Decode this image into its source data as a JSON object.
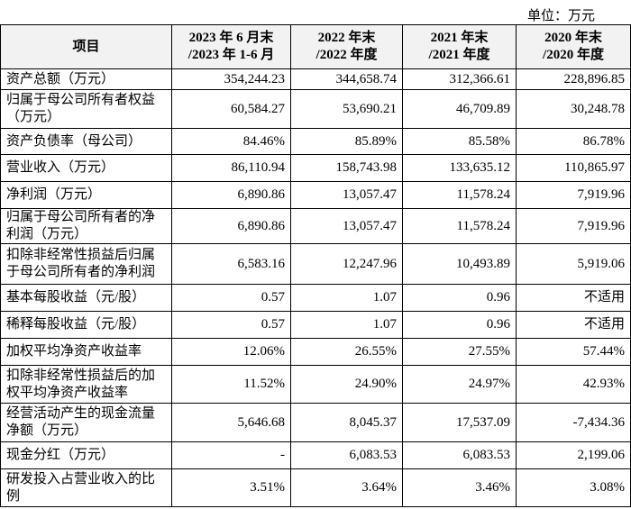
{
  "unit": "单位：万元",
  "table": {
    "header": [
      [
        "项目"
      ],
      [
        "2023 年 6 月末",
        "/2023 年 1-6 月"
      ],
      [
        "2022 年末",
        "/2022 年度"
      ],
      [
        "2021 年末",
        "/2021 年度"
      ],
      [
        "2020 年末",
        "/2020 年度"
      ]
    ],
    "rows": [
      [
        "资产总额（万元）",
        "354,244.23",
        "344,658.74",
        "312,366.61",
        "228,896.85"
      ],
      [
        "归属于母公司所有者权益（万元）",
        "60,584.27",
        "53,690.21",
        "46,709.89",
        "30,248.78"
      ],
      [
        "资产负债率（母公司）",
        "84.46%",
        "85.89%",
        "85.58%",
        "86.78%"
      ],
      [
        "营业收入（万元）",
        "86,110.94",
        "158,743.98",
        "133,635.12",
        "110,865.97"
      ],
      [
        "净利润（万元）",
        "6,890.86",
        "13,057.47",
        "11,578.24",
        "7,919.96"
      ],
      [
        "归属于母公司所有者的净利润（万元）",
        "6,890.86",
        "13,057.47",
        "11,578.24",
        "7,919.96"
      ],
      [
        "扣除非经常性损益后归属于母公司所有者的净利润",
        "6,583.16",
        "12,247.96",
        "10,493.89",
        "5,919.06"
      ],
      [
        "基本每股收益（元/股）",
        "0.57",
        "1.07",
        "0.96",
        "不适用"
      ],
      [
        "稀释每股收益（元/股）",
        "0.57",
        "1.07",
        "0.96",
        "不适用"
      ],
      [
        "加权平均净资产收益率",
        "12.06%",
        "26.55%",
        "27.55%",
        "57.44%"
      ],
      [
        "扣除非经常性损益后的加权平均净资产收益率",
        "11.52%",
        "24.90%",
        "24.97%",
        "42.93%"
      ],
      [
        "经营活动产生的现金流量净额（万元）",
        "5,646.68",
        "8,045.37",
        "17,537.09",
        "-7,434.36"
      ],
      [
        "现金分红（万元）",
        "-",
        "6,083.53",
        "6,083.53",
        "2,199.06"
      ],
      [
        "研发投入占营业收入的比例",
        "3.51%",
        "3.64%",
        "3.46%",
        "3.08%"
      ]
    ]
  }
}
